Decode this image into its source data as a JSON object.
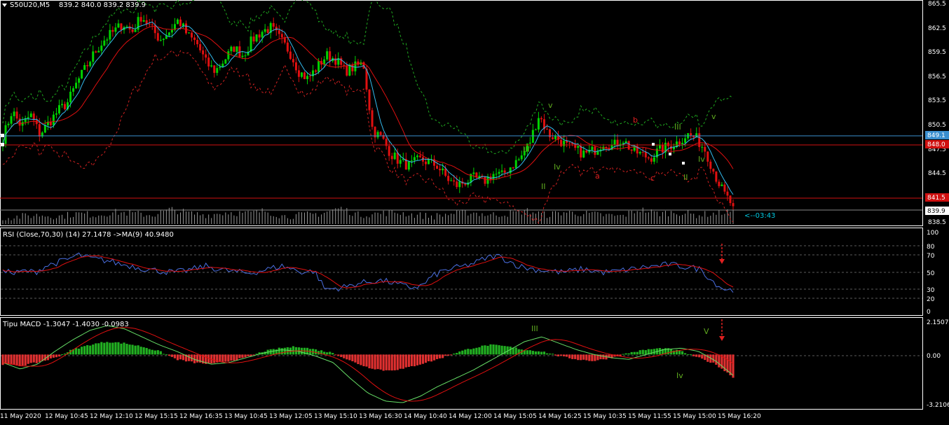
{
  "window": {
    "title_label": "S50U20,M5",
    "ohlc_label": "839.2 840.0 839.2 839.9",
    "menu_icon": "triangle-down-icon"
  },
  "colors": {
    "background": "#000000",
    "grid": "#5a5a5a",
    "bull": "#00d200",
    "bear": "#e01010",
    "ma_fast": "#33bbee",
    "ma_slow": "#e01010",
    "band_upper": "#1fa81f",
    "band_lower": "#d02020",
    "axis_text": "#ffffff",
    "hline_blue": "#3a8fd0",
    "hline_red": "#d01010",
    "wave_green": "#5faa1f",
    "wave_red": "#e02020",
    "countdown": "#00c8e0"
  },
  "price_panel": {
    "scale_labels": [
      "865.5",
      "862.5",
      "859.5",
      "856.5",
      "853.5",
      "850.5",
      "847.5",
      "844.5",
      "838.5"
    ],
    "blue_line_label": "849.1",
    "red_line_label": "848.0",
    "red_line2_label": "841.5",
    "current_price_label": "839.9",
    "countdown_label": "<--03:43",
    "wave_labels": [
      {
        "text": "v",
        "color": "green"
      },
      {
        "text": "III",
        "color": "green"
      },
      {
        "text": "Iv",
        "color": "green"
      },
      {
        "text": "II",
        "color": "green"
      },
      {
        "text": "b",
        "color": "red"
      },
      {
        "text": "a",
        "color": "red"
      },
      {
        "text": "III",
        "color": "green"
      },
      {
        "text": "c",
        "color": "red"
      },
      {
        "text": "Iv",
        "color": "green"
      },
      {
        "text": "II",
        "color": "green"
      },
      {
        "text": "v",
        "color": "green"
      }
    ]
  },
  "rsi_panel": {
    "title": "RSI (Close,70,30) (14) 27.1478  ->MA(9) 40.9480",
    "levels": [
      "100",
      "80",
      "70",
      "50",
      "30",
      "20",
      "0"
    ]
  },
  "macd_panel": {
    "title": "Tipu MACD -1.3047 -1.4030 -0.0983",
    "levels": [
      "2.1507",
      "0.00",
      "-3.2106"
    ],
    "wave_labels": [
      "III",
      "V",
      "Iv"
    ]
  },
  "time_axis": {
    "labels": [
      "11 May 2020",
      "12 May 10:45",
      "12 May 12:10",
      "12 May 15:15",
      "12 May 16:35",
      "13 May 10:45",
      "13 May 12:05",
      "13 May 15:10",
      "13 May 16:30",
      "14 May 10:40",
      "14 May 12:00",
      "14 May 15:05",
      "14 May 16:25",
      "15 May 10:35",
      "15 May 11:55",
      "15 May 15:00",
      "15 May 16:20"
    ]
  },
  "chart_data": {
    "type": "candlestick",
    "symbol": "S50U20",
    "timeframe": "M5",
    "price_range": [
      838.0,
      866.0
    ],
    "last": {
      "open": 839.2,
      "high": 840.0,
      "low": 839.2,
      "close": 839.9
    },
    "anchor_closes": [
      848.5,
      852.0,
      850.0,
      851.5,
      849.0,
      850.5,
      852.0,
      853.0,
      855.5,
      857.5,
      859.5,
      861.0,
      862.0,
      863.0,
      862.0,
      864.0,
      862.5,
      861.0,
      862.0,
      863.5,
      861.5,
      860.5,
      858.0,
      857.0,
      858.5,
      860.0,
      859.0,
      861.0,
      862.0,
      862.5,
      861.0,
      859.5,
      857.0,
      856.0,
      857.5,
      859.0,
      858.5,
      857.0,
      857.5,
      858.0,
      849.5,
      848.5,
      846.5,
      845.5,
      845.0,
      845.8,
      845.5,
      845.0,
      843.5,
      842.5,
      843.0,
      843.5,
      843.0,
      844.0,
      843.8,
      845.0,
      846.0,
      848.0,
      851.5,
      849.0,
      848.5,
      847.5,
      847.0,
      846.5,
      847.0,
      848.0,
      847.5,
      848.5,
      847.0,
      846.5,
      846.0,
      847.0,
      847.5,
      848.0,
      849.0,
      848.5,
      847.0,
      844.0,
      841.5,
      839.9
    ],
    "volume_levels": [
      2,
      3,
      4,
      3,
      5,
      4,
      6,
      5,
      4,
      8,
      5,
      4,
      6,
      5,
      7,
      3,
      4,
      5,
      9,
      4,
      5,
      6,
      4,
      3,
      5,
      6,
      4,
      5,
      7,
      4,
      6,
      5,
      4,
      3,
      8,
      5,
      6,
      4,
      5,
      7
    ],
    "rsi_anchors": [
      55,
      48,
      52,
      50,
      58,
      62,
      66,
      72,
      68,
      66,
      64,
      60,
      58,
      55,
      53,
      51,
      50,
      52,
      55,
      58,
      54,
      52,
      50,
      49,
      52,
      55,
      58,
      54,
      50,
      52,
      29,
      30,
      32,
      36,
      38,
      40,
      38,
      34,
      31,
      33,
      45,
      52,
      55,
      58,
      62,
      68,
      71,
      65,
      58,
      55,
      53,
      52,
      50,
      52,
      54,
      52,
      50,
      51,
      53,
      55,
      57,
      58,
      60,
      58,
      56,
      54,
      40,
      30,
      27
    ],
    "macd_hist_anchors": [
      -0.6,
      -0.7,
      -0.5,
      -0.2,
      0.3,
      0.6,
      0.8,
      0.7,
      0.5,
      0.2,
      -0.3,
      -0.5,
      -0.6,
      -0.4,
      -0.2,
      0.2,
      0.4,
      0.5,
      0.3,
      0.1,
      -0.4,
      -0.8,
      -1.0,
      -0.9,
      -0.6,
      -0.3,
      0.1,
      0.4,
      0.6,
      0.5,
      0.3,
      0.2,
      -0.1,
      -0.3,
      -0.4,
      -0.2,
      0.1,
      0.3,
      0.4,
      0.2,
      -0.2,
      -0.6,
      -1.4
    ],
    "macd_line_anchors": [
      -0.5,
      -0.9,
      -0.6,
      0.2,
      0.9,
      1.5,
      1.8,
      1.6,
      1.1,
      0.6,
      0.2,
      -0.3,
      -0.6,
      -0.5,
      -0.2,
      0.1,
      0.3,
      0.2,
      -0.1,
      -0.5,
      -1.5,
      -2.4,
      -2.9,
      -3.0,
      -2.6,
      -2.0,
      -1.5,
      -1.0,
      -0.4,
      0.2,
      0.8,
      1.1,
      0.7,
      0.3,
      0.0,
      -0.2,
      -0.3,
      0.0,
      0.3,
      0.4,
      0.2,
      -0.4,
      -1.3
    ],
    "macd_range": [
      -3.2106,
      2.1507
    ]
  }
}
